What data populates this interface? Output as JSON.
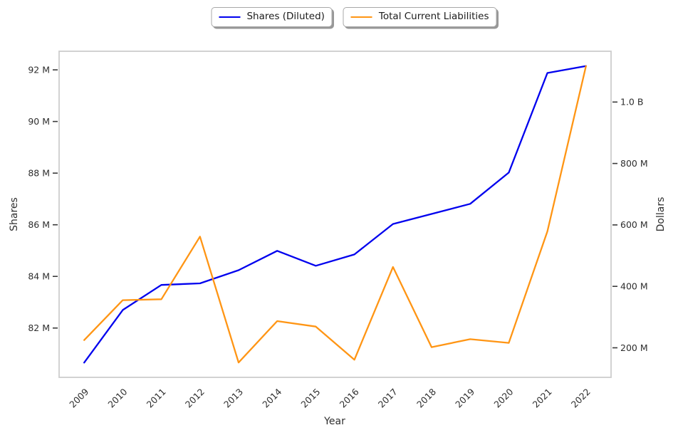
{
  "figure": {
    "background": "#ffffff"
  },
  "chart_data": {
    "type": "line",
    "title": "",
    "xlabel": "Year",
    "categories": [
      "2009",
      "2010",
      "2011",
      "2012",
      "2013",
      "2014",
      "2015",
      "2016",
      "2017",
      "2018",
      "2019",
      "2020",
      "2021",
      "2022"
    ],
    "series": [
      {
        "name": "Shares (Diluted)",
        "axis": "left",
        "color": "#0000ee",
        "unit": "millions of shares",
        "values_millions": [
          80.66,
          82.7,
          83.67,
          83.73,
          84.24,
          84.99,
          84.41,
          84.85,
          86.03,
          86.42,
          86.81,
          88.02,
          91.88,
          92.15
        ]
      },
      {
        "name": "Total Current Liabilities",
        "axis": "right",
        "color": "#ff9514",
        "unit": "millions of dollars",
        "values_millions": [
          225,
          355,
          358,
          562,
          152,
          287,
          269,
          161,
          463,
          202,
          228,
          216,
          579,
          1117
        ]
      }
    ],
    "left_axis": {
      "label": "Shares",
      "range_millions": [
        80.09,
        92.72
      ],
      "ticks": [
        {
          "value": 82,
          "label": "82 M"
        },
        {
          "value": 84,
          "label": "84 M"
        },
        {
          "value": 86,
          "label": "86 M"
        },
        {
          "value": 88,
          "label": "88 M"
        },
        {
          "value": 90,
          "label": "90 M"
        },
        {
          "value": 92,
          "label": "92 M"
        }
      ]
    },
    "right_axis": {
      "label": "Dollars",
      "range_millions": [
        103.8,
        1165.3
      ],
      "ticks": [
        {
          "value": 200,
          "label": "200 M"
        },
        {
          "value": 400,
          "label": "400 M"
        },
        {
          "value": 600,
          "label": "600 M"
        },
        {
          "value": 800,
          "label": "800 M"
        },
        {
          "value": 1000,
          "label": "1.0 B"
        }
      ]
    },
    "legend_position": "top-center",
    "grid": false
  }
}
